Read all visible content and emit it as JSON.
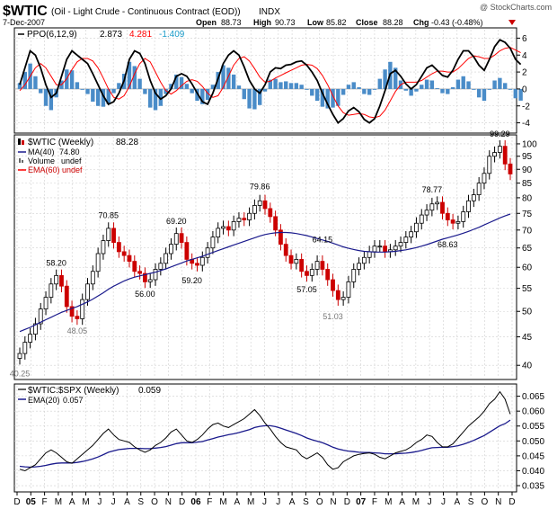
{
  "header": {
    "symbol": "$WTIC",
    "description": "(Oil - Light Crude - Continuous Contract (EOD))",
    "exchange": "INDX",
    "date": "7-Dec-2007",
    "open_label": "Open",
    "open": "88.73",
    "high_label": "High",
    "high": "90.73",
    "low_label": "Low",
    "low": "85.82",
    "close_label": "Close",
    "close": "88.28",
    "chg_label": "Chg",
    "chg": "-0.43 (-0.48%)",
    "watermark": "@ StockCharts.com"
  },
  "colors": {
    "candle_up": "#000000",
    "candle_down": "#cc0000",
    "ma": "#1a1a8c",
    "ema_red": "#ff0000",
    "ppo_hist": "#4a8cc8",
    "ppo_signal": "#1a9bc8"
  },
  "chart_data": [
    {
      "type": "line",
      "panel": "ppo",
      "title": "PPO(6,12,9)",
      "ppo_value": "2.873",
      "signal_value": "4.281",
      "hist_value": "-1.409",
      "ylim": [
        -5,
        7
      ],
      "yticks": [
        "-4",
        "-2",
        "0",
        "2",
        "4",
        "6"
      ],
      "ytick_values": [
        -4,
        -2,
        0,
        2,
        4,
        6
      ],
      "ppo": [
        0.5,
        2.5,
        4.5,
        4.0,
        2.5,
        0.5,
        -1.0,
        -0.5,
        1.5,
        3.5,
        4.5,
        4.0,
        3.5,
        3.0,
        1.8,
        0.5,
        -0.8,
        -1.8,
        -1.5,
        -0.5,
        1.0,
        3.5,
        4.5,
        4.2,
        3.0,
        1.0,
        -0.5,
        -1.2,
        -0.8,
        0.0,
        1.5,
        1.8,
        1.5,
        0.6,
        -0.5,
        -1.5,
        -1.8,
        -0.5,
        1.2,
        3.0,
        4.0,
        4.5,
        4.0,
        2.6,
        1.0,
        0.0,
        -0.5,
        0.5,
        2.0,
        2.5,
        2.4,
        2.8,
        2.9,
        3.2,
        3.3,
        2.8,
        2.0,
        1.0,
        -0.5,
        -1.8,
        -3.0,
        -4.0,
        -3.5,
        -2.6,
        -2.2,
        -2.7,
        -3.6,
        -4.0,
        -3.5,
        -2.0,
        -0.2,
        1.8,
        2.2,
        1.5,
        0.6,
        0.0,
        0.5,
        1.5,
        2.5,
        2.8,
        2.2,
        1.6,
        1.4,
        2.2,
        3.5,
        4.5,
        4.5,
        3.8,
        2.8,
        2.2,
        3.5,
        5.0,
        5.8,
        5.5,
        4.8,
        3.5,
        2.9
      ],
      "signal": [
        -0.2,
        0.5,
        1.5,
        2.5,
        3.0,
        2.5,
        1.5,
        0.5,
        0.5,
        1.2,
        2.3,
        3.2,
        3.6,
        3.6,
        3.3,
        2.5,
        1.3,
        0.0,
        -1.0,
        -1.2,
        -0.8,
        0.3,
        1.8,
        3.0,
        3.6,
        3.2,
        2.0,
        0.8,
        -0.2,
        -0.6,
        -0.2,
        0.4,
        0.9,
        1.1,
        0.9,
        0.3,
        -0.5,
        -1.0,
        -0.8,
        0.2,
        1.5,
        2.8,
        3.6,
        3.8,
        3.3,
        2.4,
        1.4,
        0.8,
        0.9,
        1.3,
        1.6,
        1.9,
        2.2,
        2.5,
        2.8,
        2.9,
        2.8,
        2.4,
        1.6,
        0.5,
        -0.8,
        -2.0,
        -2.8,
        -3.1,
        -3.0,
        -2.9,
        -3.0,
        -3.3,
        -3.4,
        -3.2,
        -2.5,
        -1.4,
        -0.3,
        0.5,
        0.8,
        0.8,
        0.8,
        1.0,
        1.4,
        1.8,
        2.1,
        2.1,
        2.0,
        2.0,
        2.4,
        3.0,
        3.6,
        3.9,
        3.8,
        3.6,
        3.6,
        4.0,
        4.5,
        4.8,
        4.9,
        4.6,
        4.28
      ]
    },
    {
      "type": "candlestick",
      "panel": "price",
      "title": "$WTIC (Weekly)",
      "last": "88.28",
      "legend": [
        {
          "label": "MA(40)",
          "value": "74.80"
        },
        {
          "label": "Volume",
          "value": "undef"
        },
        {
          "label": "EMA(60)",
          "value": "undef"
        }
      ],
      "ylim": [
        38,
        103
      ],
      "yticks": [
        "40",
        "45",
        "50",
        "55",
        "60",
        "65",
        "70",
        "75",
        "80",
        "85",
        "90",
        "95",
        "100"
      ],
      "ytick_values": [
        40,
        45,
        50,
        55,
        60,
        65,
        70,
        75,
        80,
        85,
        90,
        95,
        100
      ],
      "scale": "log",
      "close": [
        42.0,
        44.0,
        45.5,
        47.5,
        50.5,
        53.0,
        56.0,
        58.0,
        55.5,
        51.0,
        49.0,
        48.5,
        52.5,
        56.0,
        59.0,
        63.5,
        67.0,
        70.5,
        66.5,
        64.0,
        63.0,
        61.5,
        59.0,
        58.5,
        56.5,
        57.0,
        59.5,
        61.0,
        63.5,
        66.0,
        69.0,
        66.5,
        62.0,
        61.0,
        60.5,
        62.5,
        65.0,
        68.0,
        70.5,
        71.0,
        70.0,
        72.5,
        73.5,
        73.0,
        75.0,
        77.5,
        79.0,
        76.5,
        74.0,
        70.0,
        66.0,
        63.0,
        61.0,
        62.0,
        59.0,
        58.0,
        59.5,
        61.5,
        59.5,
        57.0,
        54.5,
        52.5,
        53.0,
        56.5,
        59.5,
        61.0,
        62.5,
        64.0,
        65.5,
        65.5,
        64.0,
        64.5,
        65.5,
        66.5,
        68.0,
        69.5,
        72.0,
        74.5,
        76.0,
        78.0,
        78.5,
        75.0,
        73.0,
        72.0,
        72.5,
        75.5,
        79.0,
        81.0,
        85.0,
        88.5,
        95.0,
        96.5,
        99.0,
        92.0,
        88.28
      ],
      "ma40": [
        46.0,
        46.4,
        46.8,
        47.3,
        47.8,
        48.3,
        48.8,
        49.3,
        49.8,
        50.2,
        50.6,
        51.0,
        51.5,
        52.0,
        52.6,
        53.3,
        54.0,
        54.8,
        55.5,
        56.1,
        56.7,
        57.2,
        57.6,
        57.9,
        58.2,
        58.5,
        58.8,
        59.2,
        59.6,
        60.1,
        60.6,
        61.1,
        61.6,
        62.0,
        62.4,
        62.8,
        63.3,
        63.8,
        64.3,
        64.8,
        65.3,
        65.8,
        66.3,
        66.8,
        67.3,
        67.8,
        68.3,
        68.7,
        69.0,
        69.2,
        69.3,
        69.3,
        69.2,
        69.0,
        68.7,
        68.4,
        68.0,
        67.6,
        67.2,
        66.8,
        66.3,
        65.8,
        65.3,
        64.9,
        64.6,
        64.3,
        64.1,
        64.0,
        63.9,
        63.9,
        63.9,
        64.0,
        64.1,
        64.3,
        64.5,
        64.8,
        65.1,
        65.5,
        65.9,
        66.4,
        66.9,
        67.4,
        67.8,
        68.2,
        68.6,
        69.1,
        69.6,
        70.2,
        70.8,
        71.5,
        72.2,
        72.9,
        73.6,
        74.2,
        74.8
      ],
      "annotations": [
        {
          "text": "40.25",
          "i": 0,
          "v": 40.25,
          "style": "grey"
        },
        {
          "text": "48.05",
          "i": 11,
          "v": 48.05,
          "style": "grey"
        },
        {
          "text": "58.20",
          "i": 7,
          "v": 58.2,
          "style": "black"
        },
        {
          "text": "70.85",
          "i": 17,
          "v": 70.85,
          "style": "black"
        },
        {
          "text": "56.00",
          "i": 24,
          "v": 56.0,
          "style": "black"
        },
        {
          "text": "69.20",
          "i": 30,
          "v": 69.2,
          "style": "black"
        },
        {
          "text": "59.20",
          "i": 33,
          "v": 59.2,
          "style": "black"
        },
        {
          "text": "79.86",
          "i": 46,
          "v": 79.86,
          "style": "black"
        },
        {
          "text": "64.15",
          "i": 58,
          "v": 64.15,
          "style": "black"
        },
        {
          "text": "57.05",
          "i": 55,
          "v": 57.05,
          "style": "black"
        },
        {
          "text": "51.03",
          "i": 60,
          "v": 51.03,
          "style": "grey"
        },
        {
          "text": "68.63",
          "i": 82,
          "v": 68.63,
          "style": "black"
        },
        {
          "text": "78.77",
          "i": 79,
          "v": 78.77,
          "style": "black"
        },
        {
          "text": "99.29",
          "i": 92,
          "v": 99.29,
          "style": "black"
        }
      ]
    },
    {
      "type": "line",
      "panel": "ratio",
      "title": "$WTIC:$SPX (Weekly)",
      "last": "0.059",
      "legend": [
        {
          "label": "EMA(20)",
          "value": "0.057"
        }
      ],
      "ylim": [
        0.0335,
        0.0685
      ],
      "yticks": [
        "0.035",
        "0.040",
        "0.045",
        "0.050",
        "0.055",
        "0.060",
        "0.065"
      ],
      "ytick_values": [
        0.035,
        0.04,
        0.045,
        0.05,
        0.055,
        0.06,
        0.065
      ],
      "ratio": [
        0.0405,
        0.04,
        0.041,
        0.042,
        0.044,
        0.046,
        0.047,
        0.046,
        0.0445,
        0.043,
        0.0425,
        0.044,
        0.0455,
        0.047,
        0.0485,
        0.0505,
        0.0525,
        0.054,
        0.052,
        0.0505,
        0.05,
        0.0495,
        0.048,
        0.047,
        0.0462,
        0.047,
        0.0485,
        0.0495,
        0.051,
        0.053,
        0.054,
        0.052,
        0.05,
        0.0495,
        0.0505,
        0.052,
        0.054,
        0.0555,
        0.056,
        0.055,
        0.0545,
        0.0555,
        0.0565,
        0.0575,
        0.059,
        0.0605,
        0.0585,
        0.056,
        0.054,
        0.0515,
        0.0495,
        0.048,
        0.0475,
        0.047,
        0.045,
        0.044,
        0.045,
        0.046,
        0.0445,
        0.042,
        0.0405,
        0.041,
        0.043,
        0.044,
        0.045,
        0.0455,
        0.0458,
        0.046,
        0.0455,
        0.0445,
        0.044,
        0.045,
        0.046,
        0.0465,
        0.047,
        0.048,
        0.0495,
        0.0505,
        0.052,
        0.0515,
        0.0495,
        0.048,
        0.048,
        0.049,
        0.051,
        0.053,
        0.055,
        0.0565,
        0.058,
        0.06,
        0.0625,
        0.064,
        0.0665,
        0.064,
        0.059
      ],
      "ema20": [
        0.0415,
        0.0413,
        0.0412,
        0.0413,
        0.0415,
        0.0418,
        0.0422,
        0.0425,
        0.0426,
        0.0426,
        0.0426,
        0.0428,
        0.0431,
        0.0435,
        0.044,
        0.0446,
        0.0454,
        0.0462,
        0.0467,
        0.0471,
        0.0473,
        0.0475,
        0.0475,
        0.0475,
        0.0474,
        0.0474,
        0.0476,
        0.0478,
        0.0481,
        0.0486,
        0.0491,
        0.0494,
        0.0494,
        0.0494,
        0.0496,
        0.0498,
        0.0503,
        0.0508,
        0.0513,
        0.0517,
        0.0521,
        0.0524,
        0.0528,
        0.0533,
        0.0538,
        0.0545,
        0.0549,
        0.0551,
        0.0551,
        0.0548,
        0.0543,
        0.0537,
        0.0531,
        0.0525,
        0.0518,
        0.051,
        0.0504,
        0.0499,
        0.0494,
        0.0487,
        0.0479,
        0.0473,
        0.0469,
        0.0466,
        0.0464,
        0.0462,
        0.0461,
        0.0461,
        0.046,
        0.0459,
        0.0457,
        0.0457,
        0.0457,
        0.0458,
        0.0459,
        0.0461,
        0.0464,
        0.0468,
        0.0473,
        0.0477,
        0.0478,
        0.0479,
        0.0479,
        0.0481,
        0.0484,
        0.0489,
        0.0495,
        0.0502,
        0.051,
        0.0518,
        0.0529,
        0.054,
        0.0551,
        0.0558,
        0.057
      ]
    }
  ],
  "xaxis": {
    "labels": [
      "D",
      "05",
      "F",
      "M",
      "A",
      "M",
      "J",
      "J",
      "A",
      "S",
      "O",
      "N",
      "D",
      "06",
      "F",
      "M",
      "A",
      "M",
      "J",
      "J",
      "A",
      "S",
      "O",
      "N",
      "D",
      "07",
      "F",
      "M",
      "A",
      "M",
      "J",
      "J",
      "A",
      "S",
      "O",
      "N",
      "D"
    ],
    "bold": [
      false,
      true,
      false,
      false,
      false,
      false,
      false,
      false,
      false,
      false,
      false,
      false,
      false,
      true,
      false,
      false,
      false,
      false,
      false,
      false,
      false,
      false,
      false,
      false,
      false,
      true,
      false,
      false,
      false,
      false,
      false,
      false,
      false,
      false,
      false,
      false,
      false
    ]
  }
}
